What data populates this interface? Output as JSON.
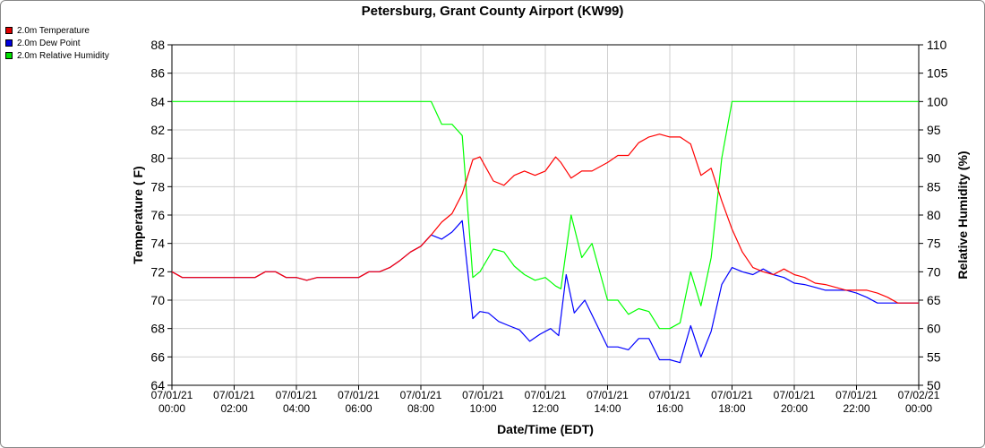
{
  "chart_data": {
    "type": "line",
    "title": "Petersburg, Grant County Airport (KW99)",
    "xlabel": "Date/Time (EDT)",
    "ylabel": "Temperature ( F)",
    "y2label": "Relative Humidity (%)",
    "ylim": [
      64,
      88
    ],
    "y2lim": [
      50,
      110
    ],
    "xlim_hours": [
      0,
      24
    ],
    "grid": true,
    "legend_position": "top-left",
    "yticks": [
      64,
      66,
      68,
      70,
      72,
      74,
      76,
      78,
      80,
      82,
      84,
      86,
      88
    ],
    "y2ticks": [
      50,
      55,
      60,
      65,
      70,
      75,
      80,
      85,
      90,
      95,
      100,
      105,
      110
    ],
    "xticks": [
      {
        "date": "07/01/21",
        "time": "00:00"
      },
      {
        "date": "07/01/21",
        "time": "02:00"
      },
      {
        "date": "07/01/21",
        "time": "04:00"
      },
      {
        "date": "07/01/21",
        "time": "06:00"
      },
      {
        "date": "07/01/21",
        "time": "08:00"
      },
      {
        "date": "07/01/21",
        "time": "10:00"
      },
      {
        "date": "07/01/21",
        "time": "12:00"
      },
      {
        "date": "07/01/21",
        "time": "14:00"
      },
      {
        "date": "07/01/21",
        "time": "16:00"
      },
      {
        "date": "07/01/21",
        "time": "18:00"
      },
      {
        "date": "07/01/21",
        "time": "20:00"
      },
      {
        "date": "07/01/21",
        "time": "22:00"
      },
      {
        "date": "07/02/21",
        "time": "00:00"
      }
    ],
    "series": [
      {
        "name": "2.0m Temperature",
        "color": "#ff0000",
        "axis": "left",
        "points": [
          [
            0.0,
            72.0
          ],
          [
            0.33,
            71.6
          ],
          [
            1.0,
            71.6
          ],
          [
            2.0,
            71.6
          ],
          [
            2.67,
            71.6
          ],
          [
            3.0,
            72.0
          ],
          [
            3.33,
            72.0
          ],
          [
            3.67,
            71.6
          ],
          [
            4.0,
            71.6
          ],
          [
            4.33,
            71.4
          ],
          [
            4.67,
            71.6
          ],
          [
            5.0,
            71.6
          ],
          [
            6.0,
            71.6
          ],
          [
            6.33,
            72.0
          ],
          [
            6.67,
            72.0
          ],
          [
            7.0,
            72.3
          ],
          [
            7.33,
            72.8
          ],
          [
            7.67,
            73.4
          ],
          [
            8.0,
            73.8
          ],
          [
            8.33,
            74.6
          ],
          [
            8.67,
            75.5
          ],
          [
            9.0,
            76.1
          ],
          [
            9.33,
            77.5
          ],
          [
            9.67,
            79.9
          ],
          [
            9.9,
            80.1
          ],
          [
            10.33,
            78.4
          ],
          [
            10.67,
            78.1
          ],
          [
            11.0,
            78.8
          ],
          [
            11.33,
            79.1
          ],
          [
            11.67,
            78.8
          ],
          [
            12.0,
            79.1
          ],
          [
            12.33,
            80.1
          ],
          [
            12.5,
            79.7
          ],
          [
            12.83,
            78.6
          ],
          [
            13.17,
            79.1
          ],
          [
            13.5,
            79.1
          ],
          [
            14.0,
            79.7
          ],
          [
            14.33,
            80.2
          ],
          [
            14.67,
            80.2
          ],
          [
            15.0,
            81.1
          ],
          [
            15.33,
            81.5
          ],
          [
            15.67,
            81.7
          ],
          [
            16.0,
            81.5
          ],
          [
            16.33,
            81.5
          ],
          [
            16.67,
            81.0
          ],
          [
            17.0,
            78.8
          ],
          [
            17.33,
            79.3
          ],
          [
            17.67,
            77.0
          ],
          [
            18.0,
            75.0
          ],
          [
            18.33,
            73.4
          ],
          [
            18.67,
            72.3
          ],
          [
            19.0,
            72.0
          ],
          [
            19.33,
            71.8
          ],
          [
            19.67,
            72.2
          ],
          [
            20.0,
            71.8
          ],
          [
            20.33,
            71.6
          ],
          [
            20.67,
            71.2
          ],
          [
            21.0,
            71.1
          ],
          [
            21.33,
            70.9
          ],
          [
            21.67,
            70.7
          ],
          [
            22.0,
            70.7
          ],
          [
            22.33,
            70.7
          ],
          [
            22.67,
            70.5
          ],
          [
            23.0,
            70.2
          ],
          [
            23.33,
            69.8
          ],
          [
            24.0,
            69.8
          ]
        ]
      },
      {
        "name": "2.0m Dew Point",
        "color": "#0000ff",
        "axis": "left",
        "points": [
          [
            0.0,
            72.0
          ],
          [
            0.33,
            71.6
          ],
          [
            1.0,
            71.6
          ],
          [
            2.0,
            71.6
          ],
          [
            2.67,
            71.6
          ],
          [
            3.0,
            72.0
          ],
          [
            3.33,
            72.0
          ],
          [
            3.67,
            71.6
          ],
          [
            4.0,
            71.6
          ],
          [
            4.33,
            71.4
          ],
          [
            4.67,
            71.6
          ],
          [
            5.0,
            71.6
          ],
          [
            6.0,
            71.6
          ],
          [
            6.33,
            72.0
          ],
          [
            6.67,
            72.0
          ],
          [
            7.0,
            72.3
          ],
          [
            7.33,
            72.8
          ],
          [
            7.67,
            73.4
          ],
          [
            8.0,
            73.8
          ],
          [
            8.33,
            74.6
          ],
          [
            8.67,
            74.3
          ],
          [
            9.0,
            74.8
          ],
          [
            9.33,
            75.6
          ],
          [
            9.67,
            68.7
          ],
          [
            9.9,
            69.2
          ],
          [
            10.17,
            69.1
          ],
          [
            10.5,
            68.5
          ],
          [
            10.83,
            68.2
          ],
          [
            11.17,
            67.9
          ],
          [
            11.5,
            67.1
          ],
          [
            11.83,
            67.6
          ],
          [
            12.17,
            68.0
          ],
          [
            12.43,
            67.5
          ],
          [
            12.67,
            71.8
          ],
          [
            12.93,
            69.1
          ],
          [
            13.27,
            70.0
          ],
          [
            13.67,
            68.2
          ],
          [
            14.0,
            66.7
          ],
          [
            14.33,
            66.7
          ],
          [
            14.67,
            66.5
          ],
          [
            15.0,
            67.3
          ],
          [
            15.33,
            67.3
          ],
          [
            15.67,
            65.8
          ],
          [
            16.0,
            65.8
          ],
          [
            16.33,
            65.6
          ],
          [
            16.67,
            68.2
          ],
          [
            17.0,
            66.0
          ],
          [
            17.33,
            67.8
          ],
          [
            17.67,
            71.1
          ],
          [
            18.0,
            72.3
          ],
          [
            18.33,
            72.0
          ],
          [
            18.67,
            71.8
          ],
          [
            19.0,
            72.2
          ],
          [
            19.33,
            71.8
          ],
          [
            19.67,
            71.6
          ],
          [
            20.0,
            71.2
          ],
          [
            20.33,
            71.1
          ],
          [
            20.67,
            70.9
          ],
          [
            21.0,
            70.7
          ],
          [
            21.33,
            70.7
          ],
          [
            21.67,
            70.7
          ],
          [
            22.0,
            70.5
          ],
          [
            22.33,
            70.2
          ],
          [
            22.67,
            69.8
          ],
          [
            23.0,
            69.8
          ],
          [
            24.0,
            69.8
          ]
        ]
      },
      {
        "name": "2.0m Relative Humidity",
        "color": "#00ff00",
        "axis": "right",
        "points": [
          [
            0.0,
            100
          ],
          [
            8.33,
            100
          ],
          [
            8.67,
            96
          ],
          [
            9.0,
            96
          ],
          [
            9.33,
            94
          ],
          [
            9.67,
            69
          ],
          [
            9.9,
            70
          ],
          [
            10.33,
            74
          ],
          [
            10.67,
            73.5
          ],
          [
            11.0,
            71
          ],
          [
            11.33,
            69.5
          ],
          [
            11.67,
            68.5
          ],
          [
            12.0,
            69
          ],
          [
            12.33,
            67.5
          ],
          [
            12.5,
            67
          ],
          [
            12.83,
            80
          ],
          [
            13.17,
            72.5
          ],
          [
            13.5,
            75
          ],
          [
            14.0,
            65
          ],
          [
            14.33,
            65
          ],
          [
            14.67,
            62.5
          ],
          [
            15.0,
            63.5
          ],
          [
            15.33,
            63
          ],
          [
            15.67,
            60
          ],
          [
            16.0,
            60
          ],
          [
            16.33,
            61
          ],
          [
            16.67,
            70
          ],
          [
            17.0,
            64
          ],
          [
            17.33,
            72.5
          ],
          [
            17.67,
            90
          ],
          [
            18.0,
            100
          ],
          [
            24.0,
            100
          ]
        ]
      }
    ]
  }
}
